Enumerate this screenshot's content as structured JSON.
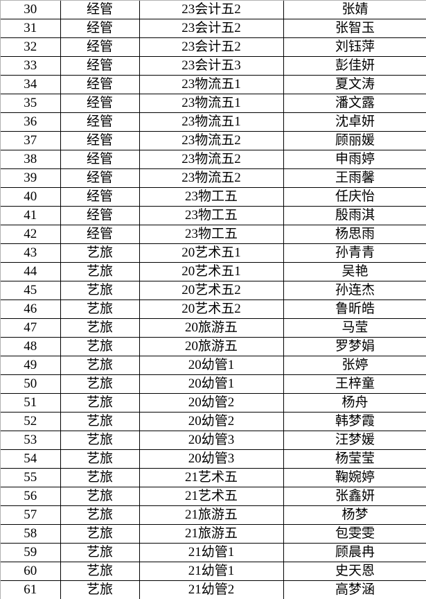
{
  "rows": [
    {
      "no": "30",
      "dept": "经管",
      "class": "23会计五2",
      "name": "张婧"
    },
    {
      "no": "31",
      "dept": "经管",
      "class": "23会计五2",
      "name": "张智玉"
    },
    {
      "no": "32",
      "dept": "经管",
      "class": "23会计五2",
      "name": "刘钰萍"
    },
    {
      "no": "33",
      "dept": "经管",
      "class": "23会计五3",
      "name": "彭佳妍"
    },
    {
      "no": "34",
      "dept": "经管",
      "class": "23物流五1",
      "name": "夏文涛"
    },
    {
      "no": "35",
      "dept": "经管",
      "class": "23物流五1",
      "name": "潘文露"
    },
    {
      "no": "36",
      "dept": "经管",
      "class": "23物流五1",
      "name": "沈卓妍"
    },
    {
      "no": "37",
      "dept": "经管",
      "class": "23物流五2",
      "name": "顾丽媛"
    },
    {
      "no": "38",
      "dept": "经管",
      "class": "23物流五2",
      "name": "申雨婷"
    },
    {
      "no": "39",
      "dept": "经管",
      "class": "23物流五2",
      "name": "王雨馨"
    },
    {
      "no": "40",
      "dept": "经管",
      "class": "23物工五",
      "name": "任庆怡"
    },
    {
      "no": "41",
      "dept": "经管",
      "class": "23物工五",
      "name": "殷雨淇"
    },
    {
      "no": "42",
      "dept": "经管",
      "class": "23物工五",
      "name": "杨思雨"
    },
    {
      "no": "43",
      "dept": "艺旅",
      "class": "20艺术五1",
      "name": "孙青青"
    },
    {
      "no": "44",
      "dept": "艺旅",
      "class": "20艺术五1",
      "name": "吴艳"
    },
    {
      "no": "45",
      "dept": "艺旅",
      "class": "20艺术五2",
      "name": "孙连杰"
    },
    {
      "no": "46",
      "dept": "艺旅",
      "class": "20艺术五2",
      "name": "鲁昕皓"
    },
    {
      "no": "47",
      "dept": "艺旅",
      "class": "20旅游五",
      "name": "马莹"
    },
    {
      "no": "48",
      "dept": "艺旅",
      "class": "20旅游五",
      "name": "罗梦娟"
    },
    {
      "no": "49",
      "dept": "艺旅",
      "class": "20幼管1",
      "name": "张婷"
    },
    {
      "no": "50",
      "dept": "艺旅",
      "class": "20幼管1",
      "name": "王梓童"
    },
    {
      "no": "51",
      "dept": "艺旅",
      "class": "20幼管2",
      "name": "杨舟"
    },
    {
      "no": "52",
      "dept": "艺旅",
      "class": "20幼管2",
      "name": "韩梦霞"
    },
    {
      "no": "53",
      "dept": "艺旅",
      "class": "20幼管3",
      "name": "汪梦媛"
    },
    {
      "no": "54",
      "dept": "艺旅",
      "class": "20幼管3",
      "name": "杨莹莹"
    },
    {
      "no": "55",
      "dept": "艺旅",
      "class": "21艺术五",
      "name": "鞠婉婷"
    },
    {
      "no": "56",
      "dept": "艺旅",
      "class": "21艺术五",
      "name": "张鑫妍"
    },
    {
      "no": "57",
      "dept": "艺旅",
      "class": "21旅游五",
      "name": "杨梦"
    },
    {
      "no": "58",
      "dept": "艺旅",
      "class": "21旅游五",
      "name": "包雯雯"
    },
    {
      "no": "59",
      "dept": "艺旅",
      "class": "21幼管1",
      "name": "顾晨冉"
    },
    {
      "no": "60",
      "dept": "艺旅",
      "class": "21幼管1",
      "name": "史天恩"
    },
    {
      "no": "61",
      "dept": "艺旅",
      "class": "21幼管2",
      "name": "高梦涵"
    }
  ]
}
